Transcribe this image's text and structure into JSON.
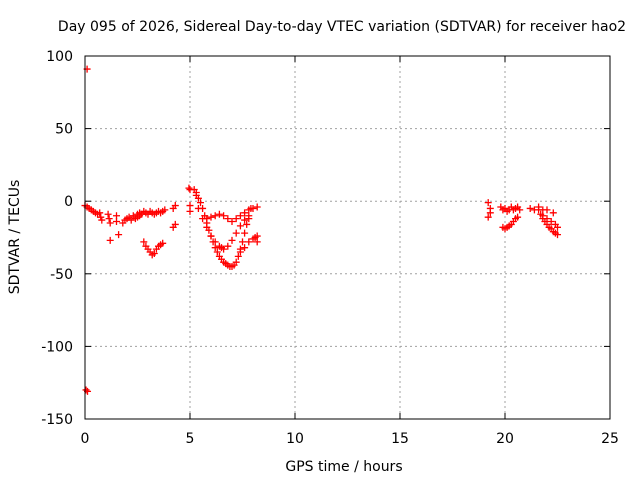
{
  "chart_data": {
    "type": "scatter",
    "title": "Day 095 of 2026, Sidereal Day-to-day VTEC variation (SDTVAR) for receiver hao2",
    "xlabel": "GPS time / hours",
    "ylabel": "SDTVAR / TECUs",
    "xlim": [
      0,
      25
    ],
    "ylim": [
      -150,
      100
    ],
    "xticks": [
      "0",
      "5",
      "10",
      "15",
      "20",
      "25"
    ],
    "yticks": [
      "100",
      "50",
      "0",
      "-50",
      "-100",
      "-150"
    ],
    "grid": true,
    "marker": "+",
    "marker_color": "#ff0000",
    "series": [
      {
        "name": "SDTVAR",
        "points": [
          [
            0.1,
            91
          ],
          [
            0.05,
            -130
          ],
          [
            0.12,
            -131
          ],
          [
            0.0,
            -3
          ],
          [
            0.1,
            -4
          ],
          [
            0.2,
            -5
          ],
          [
            0.3,
            -6
          ],
          [
            0.4,
            -7
          ],
          [
            0.5,
            -8
          ],
          [
            0.6,
            -9
          ],
          [
            0.7,
            -8
          ],
          [
            0.75,
            -11
          ],
          [
            0.8,
            -13
          ],
          [
            1.1,
            -9
          ],
          [
            1.15,
            -12
          ],
          [
            1.2,
            -15
          ],
          [
            1.2,
            -27
          ],
          [
            1.5,
            -10
          ],
          [
            1.5,
            -14
          ],
          [
            1.6,
            -23
          ],
          [
            1.8,
            -15
          ],
          [
            1.9,
            -13
          ],
          [
            2.0,
            -12
          ],
          [
            2.1,
            -11
          ],
          [
            2.2,
            -13
          ],
          [
            2.3,
            -10
          ],
          [
            2.4,
            -12
          ],
          [
            2.5,
            -9
          ],
          [
            2.5,
            -11
          ],
          [
            2.6,
            -8
          ],
          [
            2.6,
            -10
          ],
          [
            2.7,
            -9
          ],
          [
            2.8,
            -7
          ],
          [
            2.9,
            -8
          ],
          [
            3.0,
            -9
          ],
          [
            3.1,
            -7
          ],
          [
            3.2,
            -8
          ],
          [
            3.3,
            -9
          ],
          [
            3.4,
            -8
          ],
          [
            3.5,
            -7
          ],
          [
            3.6,
            -8
          ],
          [
            3.7,
            -7
          ],
          [
            3.8,
            -6
          ],
          [
            2.8,
            -28
          ],
          [
            2.9,
            -31
          ],
          [
            3.0,
            -33
          ],
          [
            3.1,
            -35
          ],
          [
            3.2,
            -37
          ],
          [
            3.3,
            -36
          ],
          [
            3.4,
            -33
          ],
          [
            3.5,
            -31
          ],
          [
            3.6,
            -30
          ],
          [
            3.7,
            -29
          ],
          [
            4.2,
            -5
          ],
          [
            4.3,
            -3
          ],
          [
            4.2,
            -18
          ],
          [
            4.3,
            -16
          ],
          [
            4.95,
            9
          ],
          [
            5.0,
            8
          ],
          [
            5.0,
            -3
          ],
          [
            5.0,
            -7
          ],
          [
            5.2,
            8
          ],
          [
            5.3,
            6
          ],
          [
            5.3,
            4
          ],
          [
            5.4,
            2
          ],
          [
            5.5,
            -1
          ],
          [
            5.6,
            -5
          ],
          [
            5.7,
            -10
          ],
          [
            5.8,
            -15
          ],
          [
            5.9,
            -20
          ],
          [
            6.0,
            -24
          ],
          [
            6.1,
            -28
          ],
          [
            6.2,
            -32
          ],
          [
            6.3,
            -35
          ],
          [
            6.4,
            -38
          ],
          [
            6.5,
            -40
          ],
          [
            6.6,
            -42
          ],
          [
            6.7,
            -43
          ],
          [
            6.8,
            -44
          ],
          [
            6.9,
            -45
          ],
          [
            7.0,
            -45
          ],
          [
            7.1,
            -44
          ],
          [
            7.2,
            -42
          ],
          [
            7.3,
            -38
          ],
          [
            7.4,
            -33
          ],
          [
            7.5,
            -28
          ],
          [
            7.6,
            -22
          ],
          [
            7.7,
            -16
          ],
          [
            7.8,
            -10
          ],
          [
            7.9,
            -5
          ],
          [
            5.4,
            -5
          ],
          [
            5.6,
            -12
          ],
          [
            5.8,
            -18
          ],
          [
            6.0,
            -24
          ],
          [
            6.2,
            -28
          ],
          [
            6.4,
            -31
          ],
          [
            6.5,
            -32
          ],
          [
            6.6,
            -33
          ],
          [
            6.8,
            -31
          ],
          [
            7.0,
            -27
          ],
          [
            7.2,
            -22
          ],
          [
            7.4,
            -17
          ],
          [
            7.6,
            -13
          ],
          [
            7.8,
            -12
          ],
          [
            5.8,
            -12
          ],
          [
            6.0,
            -11
          ],
          [
            6.2,
            -10
          ],
          [
            6.4,
            -9
          ],
          [
            6.6,
            -10
          ],
          [
            6.8,
            -12
          ],
          [
            7.0,
            -14
          ],
          [
            7.2,
            -12
          ],
          [
            7.4,
            -10
          ],
          [
            7.6,
            -8
          ],
          [
            7.8,
            -6
          ],
          [
            8.0,
            -5
          ],
          [
            8.2,
            -4
          ],
          [
            7.4,
            -35
          ],
          [
            7.6,
            -32
          ],
          [
            7.8,
            -28
          ],
          [
            8.0,
            -26
          ],
          [
            8.1,
            -25
          ],
          [
            8.2,
            -24
          ],
          [
            8.2,
            -28
          ],
          [
            19.2,
            -1
          ],
          [
            19.3,
            -5
          ],
          [
            19.3,
            -8
          ],
          [
            19.2,
            -11
          ],
          [
            19.8,
            -4
          ],
          [
            19.9,
            -6
          ],
          [
            20.0,
            -5
          ],
          [
            20.1,
            -7
          ],
          [
            20.2,
            -6
          ],
          [
            20.3,
            -4
          ],
          [
            20.4,
            -6
          ],
          [
            20.5,
            -5
          ],
          [
            20.6,
            -4
          ],
          [
            20.7,
            -6
          ],
          [
            19.9,
            -18
          ],
          [
            20.0,
            -19
          ],
          [
            20.1,
            -18
          ],
          [
            20.2,
            -17
          ],
          [
            20.3,
            -16
          ],
          [
            20.4,
            -14
          ],
          [
            20.5,
            -12
          ],
          [
            20.6,
            -11
          ],
          [
            21.2,
            -5
          ],
          [
            21.4,
            -6
          ],
          [
            21.6,
            -4
          ],
          [
            21.8,
            -6
          ],
          [
            22.0,
            -6
          ],
          [
            22.3,
            -8
          ],
          [
            21.6,
            -6
          ],
          [
            21.7,
            -9
          ],
          [
            21.8,
            -12
          ],
          [
            21.9,
            -14
          ],
          [
            22.0,
            -16
          ],
          [
            22.1,
            -18
          ],
          [
            22.2,
            -19
          ],
          [
            22.3,
            -21
          ],
          [
            22.4,
            -22
          ],
          [
            22.5,
            -23
          ],
          [
            21.8,
            -10
          ],
          [
            22.0,
            -12
          ],
          [
            22.2,
            -14
          ],
          [
            22.4,
            -16
          ],
          [
            22.5,
            -18
          ]
        ]
      }
    ]
  }
}
